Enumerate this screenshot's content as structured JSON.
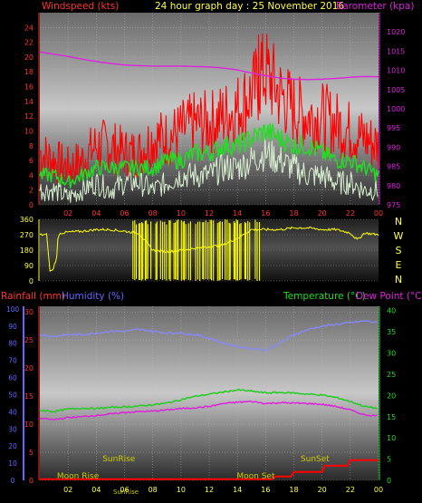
{
  "header": {
    "left_label": "Windspeed (kts)",
    "center_label": "24 hour graph day : 25 November 2016",
    "right_label": "Barometer (kpa)"
  },
  "colors": {
    "wind_gust": "#ff0000",
    "wind_avg": "#22dd22",
    "wind_lull": "#d8f0d0",
    "barometer": "#dd22dd",
    "direction": "#ffff00",
    "humidity": "#8888ff",
    "temperature": "#22cc22",
    "dew_point": "#dd22dd",
    "rainfall": "#ff0000",
    "sun_moon_text": "#cccc00",
    "left_axis": "#ff3333",
    "baro_axis": "#dd22dd",
    "temp_axis": "#22dd22",
    "humid_axis": "#6666ff",
    "grid": "#bbbbbb"
  },
  "chart_data": [
    {
      "type": "line",
      "title": "24 hour graph day : 25 November 2016",
      "ylabel_left": "Windspeed (kts)",
      "ylabel_right": "Barometer (kpa)",
      "x_ticks": [
        "02",
        "04",
        "06",
        "08",
        "10",
        "12",
        "14",
        "16",
        "18",
        "20",
        "22",
        "00"
      ],
      "y_ticks_left": [
        "0",
        "2",
        "4",
        "6",
        "8",
        "10",
        "12",
        "14",
        "16",
        "18",
        "20",
        "22",
        "24"
      ],
      "y_ticks_right": [
        "975",
        "980",
        "985",
        "990",
        "995",
        "1000",
        "1005",
        "1010",
        "1015",
        "1020"
      ],
      "ylim_left": [
        0,
        26
      ],
      "ylim_right": [
        975,
        1025
      ],
      "grid": true,
      "hours": [
        0,
        1,
        2,
        3,
        4,
        5,
        6,
        7,
        8,
        9,
        10,
        11,
        12,
        13,
        14,
        15,
        16,
        17,
        18,
        19,
        20,
        21,
        22,
        23,
        24
      ],
      "series": [
        {
          "key": "gust",
          "axis": "left",
          "values": [
            7,
            6,
            5,
            6,
            8,
            8,
            7,
            7,
            9,
            9,
            10,
            11,
            11,
            12,
            13,
            15,
            18,
            15,
            13,
            12,
            12,
            11,
            10,
            9,
            8
          ],
          "peaks": [
            {
              "x": 15.5,
              "y": 23
            },
            {
              "x": 15.7,
              "y": 22
            },
            {
              "x": 16.2,
              "y": 19
            }
          ]
        },
        {
          "key": "average",
          "axis": "left",
          "values": [
            4,
            4,
            3,
            4,
            5,
            5,
            5,
            5,
            5,
            6,
            6,
            7,
            7,
            8,
            8,
            9,
            10,
            9,
            8,
            8,
            7,
            6,
            6,
            5,
            4
          ]
        },
        {
          "key": "lull",
          "axis": "left",
          "values": [
            2,
            2,
            1,
            2,
            3,
            2,
            3,
            3,
            2,
            3,
            4,
            4,
            4,
            5,
            5,
            6,
            7,
            6,
            5,
            4,
            4,
            3,
            3,
            2,
            2
          ]
        },
        {
          "key": "barometer",
          "axis": "right",
          "values": [
            1014.8,
            1014.2,
            1013.6,
            1012.9,
            1012.3,
            1011.8,
            1011.4,
            1011.2,
            1011.1,
            1011.1,
            1011.1,
            1011.0,
            1010.9,
            1010.6,
            1010.1,
            1009.3,
            1008.6,
            1008.0,
            1007.7,
            1007.6,
            1007.7,
            1007.9,
            1008.2,
            1008.4,
            1008.3
          ]
        }
      ]
    },
    {
      "type": "line",
      "title": "",
      "ylabel_right_letters": [
        "N",
        "W",
        "S",
        "E",
        "N"
      ],
      "y_ticks_left": [
        "360",
        "270",
        "180",
        "90",
        "0"
      ],
      "ylim": [
        0,
        360
      ],
      "grid": true,
      "series": [
        {
          "key": "direction",
          "x": [
            0,
            0.5,
            0.7,
            0.9,
            1.2,
            1.3,
            1.5,
            2,
            3,
            4,
            5,
            6,
            7,
            8,
            9,
            10,
            11,
            12,
            13,
            14,
            15,
            16,
            17,
            18,
            19,
            20,
            21,
            22,
            22.5,
            23,
            24
          ],
          "values": [
            270,
            270,
            60,
            60,
            140,
            270,
            280,
            285,
            290,
            300,
            300,
            290,
            280,
            180,
            170,
            180,
            190,
            200,
            210,
            250,
            300,
            300,
            300,
            310,
            310,
            300,
            300,
            280,
            240,
            280,
            270
          ],
          "swing_region": [
            6.6,
            15.7
          ]
        }
      ]
    },
    {
      "type": "line",
      "title": "",
      "ylabel_left": "Rainfall (mm)",
      "ylabel_left2": "Humidity (%)",
      "ylabel_right": "Temperature (°C)",
      "ylabel_right2": "Dew Point (°C)",
      "x_ticks": [
        "02",
        "04",
        "06",
        "08",
        "10",
        "12",
        "14",
        "16",
        "18",
        "20",
        "22",
        "00"
      ],
      "y_ticks_humid": [
        "0",
        "10",
        "20",
        "30",
        "40",
        "50",
        "60",
        "70",
        "80",
        "90",
        "100"
      ],
      "y_ticks_rain": [
        "0",
        "5",
        "10",
        "15",
        "20",
        "25",
        "30"
      ],
      "y_ticks_temp": [
        "0",
        "5",
        "10",
        "15",
        "20",
        "25",
        "30",
        "35",
        "40"
      ],
      "ylim_rain": [
        0,
        31
      ],
      "ylim_temp": [
        0,
        41
      ],
      "grid": true,
      "series": [
        {
          "key": "humidity",
          "axis": "humidity",
          "values": [
            85,
            84,
            85,
            85,
            86,
            87,
            87,
            88,
            87,
            86,
            86,
            85,
            83,
            80,
            78,
            77,
            76,
            80,
            85,
            88,
            90,
            91,
            92,
            93,
            92
          ]
        },
        {
          "key": "temperature",
          "axis": "temp",
          "values": [
            16.5,
            16.2,
            16.8,
            17.0,
            16.9,
            17.2,
            17.3,
            17.5,
            17.8,
            18.2,
            19.0,
            19.8,
            20.3,
            20.8,
            21.3,
            21.0,
            20.6,
            20.7,
            20.6,
            20.3,
            20.1,
            19.5,
            18.6,
            17.4,
            16.9
          ]
        },
        {
          "key": "dew_point",
          "axis": "temp",
          "values": [
            14.6,
            14.3,
            14.8,
            15.0,
            15.3,
            15.6,
            16.0,
            16.2,
            16.3,
            16.6,
            16.9,
            17.1,
            17.4,
            18.1,
            18.4,
            18.6,
            18.1,
            18.3,
            18.2,
            18.1,
            17.9,
            17.4,
            16.6,
            15.4,
            15.2
          ]
        },
        {
          "key": "rainfall",
          "axis": "rain",
          "x": [
            0,
            14,
            16.5,
            16.6,
            17.8,
            18.0,
            20.0,
            20.2,
            21.8,
            22.0,
            24
          ],
          "values": [
            0.2,
            0.2,
            0.2,
            0.7,
            0.7,
            1.5,
            1.5,
            2.6,
            2.6,
            3.6,
            3.6
          ]
        }
      ],
      "annotations": [
        {
          "label": "SunRise",
          "hour": 5.6,
          "level": "upper"
        },
        {
          "label": "SunSet",
          "hour": 19.5,
          "level": "upper"
        },
        {
          "label": "Moon Rise",
          "hour": 2.7,
          "level": "lower"
        },
        {
          "label": "Moon Set",
          "hour": 15.3,
          "level": "lower"
        },
        {
          "label": "SunRise",
          "hour": 6.1,
          "level": "bottom"
        }
      ]
    }
  ]
}
